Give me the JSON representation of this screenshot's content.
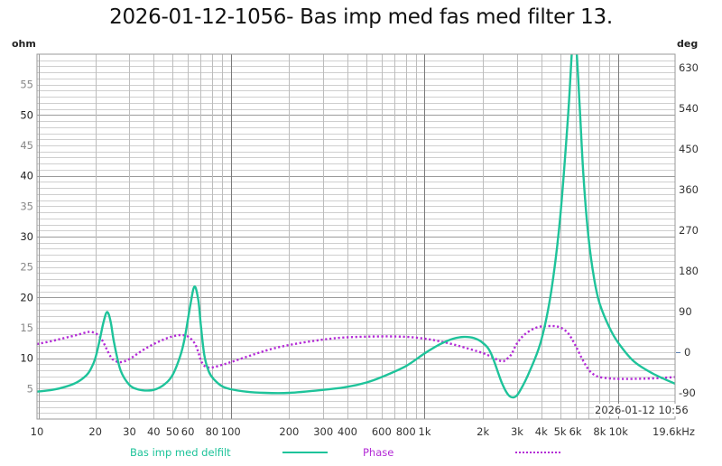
{
  "title": "2026-01-12-1056- Bas imp med fas med filter 13.",
  "left_unit": "ohm",
  "right_unit": "deg",
  "timestamp": "2026-01-12 10:56",
  "colors": {
    "impedance": "#1ec39a",
    "phase": "#b32ad6",
    "grid_minor": "#cfcfcf",
    "grid_major": "#9a9a9a",
    "axis_text": "#555555"
  },
  "legend": [
    {
      "label": "Bas imp med delfilt",
      "style": "solid",
      "color": "#1ec39a"
    },
    {
      "label": "Phase",
      "style": "dotted",
      "color": "#b32ad6"
    }
  ],
  "x_tick_labels": [
    "10",
    "20",
    "30",
    "40",
    "50",
    "60",
    "80",
    "100",
    "200",
    "300",
    "400",
    "600",
    "800",
    "1k",
    "2k",
    "3k",
    "4k",
    "5k",
    "6k",
    "8k",
    "10k",
    "19.6kHz"
  ],
  "left_tick_labels": [
    "5",
    "10",
    "15",
    "20",
    "25",
    "30",
    "35",
    "40",
    "45",
    "50",
    "55"
  ],
  "right_tick_labels": [
    "-90",
    "0",
    "90",
    "180",
    "270",
    "360",
    "450",
    "540",
    "630"
  ],
  "chart_data": {
    "type": "line",
    "title": "2026-01-12-1056- Bas imp med fas med filter 13.",
    "xlabel": "Hz",
    "xscale": "log",
    "xlim": [
      10,
      19600
    ],
    "ylabel": "ohm",
    "ylim": [
      0,
      60
    ],
    "y2label": "deg",
    "y2lim": [
      -148,
      660
    ],
    "grid": true,
    "legend_position": "bottom",
    "x_ticks": [
      10,
      20,
      30,
      40,
      50,
      60,
      80,
      100,
      200,
      300,
      400,
      600,
      800,
      1000,
      2000,
      3000,
      4000,
      5000,
      6000,
      8000,
      10000,
      19600
    ],
    "y_ticks": [
      5,
      10,
      15,
      20,
      25,
      30,
      35,
      40,
      45,
      50,
      55
    ],
    "y2_ticks": [
      -90,
      0,
      90,
      180,
      270,
      360,
      450,
      540,
      630
    ],
    "series": [
      {
        "name": "Bas imp med delfilt",
        "axis": "left",
        "x": [
          10,
          12,
          14,
          16,
          18,
          19,
          20,
          21,
          22,
          23,
          24,
          25,
          27,
          30,
          33,
          36,
          40,
          45,
          50,
          55,
          58,
          62,
          65,
          68,
          70,
          73,
          77,
          82,
          90,
          100,
          120,
          150,
          200,
          300,
          400,
          500,
          600,
          800,
          1000,
          1200,
          1400,
          1600,
          1800,
          2000,
          2200,
          2500,
          2700,
          2900,
          3100,
          3500,
          4000,
          4500,
          5000,
          5500,
          5800,
          6000,
          6300,
          6600,
          7000,
          7500,
          8000,
          9000,
          10000,
          12000,
          15000,
          19600
        ],
        "values": [
          4.5,
          4.8,
          5.3,
          6.0,
          7.2,
          8.3,
          10.0,
          12.8,
          15.8,
          17.6,
          16.0,
          12.5,
          8.0,
          5.6,
          4.9,
          4.7,
          4.8,
          5.6,
          7.2,
          10.5,
          13.5,
          19.0,
          21.8,
          19.5,
          15.5,
          10.5,
          7.8,
          6.5,
          5.4,
          4.9,
          4.5,
          4.3,
          4.3,
          4.8,
          5.3,
          6.0,
          6.9,
          8.7,
          10.8,
          12.3,
          13.2,
          13.5,
          13.3,
          12.5,
          10.8,
          6.0,
          4.0,
          3.6,
          4.6,
          8.0,
          13.0,
          21.0,
          33.0,
          50.0,
          62.0,
          63.0,
          52.0,
          40.0,
          30.0,
          23.0,
          19.0,
          15.0,
          12.5,
          9.5,
          7.5,
          5.8
        ]
      },
      {
        "name": "Phase",
        "axis": "right",
        "x": [
          10,
          12,
          14,
          16,
          18,
          19,
          20,
          21,
          22,
          23,
          24,
          25,
          27,
          30,
          35,
          40,
          45,
          50,
          55,
          60,
          65,
          68,
          70,
          73,
          77,
          82,
          90,
          100,
          150,
          200,
          300,
          400,
          600,
          800,
          1000,
          1200,
          1500,
          2000,
          2300,
          2500,
          2600,
          2800,
          3000,
          3300,
          3800,
          4500,
          5000,
          5500,
          6000,
          6500,
          7000,
          7500,
          8000,
          9000,
          10000,
          12000,
          15000,
          19600
        ],
        "values": [
          18,
          25,
          32,
          38,
          44,
          45,
          42,
          35,
          22,
          5,
          -10,
          -18,
          -22,
          -15,
          4,
          18,
          28,
          35,
          38,
          35,
          20,
          0,
          -18,
          -30,
          -34,
          -33,
          -28,
          -22,
          3,
          16,
          28,
          33,
          35,
          34,
          30,
          24,
          14,
          -2,
          -14,
          -20,
          -18,
          -5,
          20,
          40,
          55,
          58,
          55,
          42,
          15,
          -15,
          -38,
          -50,
          -55,
          -58,
          -59,
          -59,
          -58,
          -55
        ]
      }
    ]
  }
}
